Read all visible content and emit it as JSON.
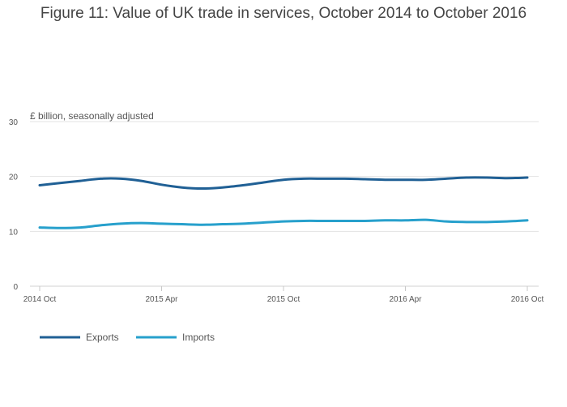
{
  "chart_data": {
    "type": "line",
    "title": "Figure 11: Value of UK trade in services, October 2014 to October 2016",
    "ylabel": "£ billion, seasonally adjusted",
    "xlabel": "",
    "ylim": [
      0,
      30
    ],
    "yticks": [
      0,
      10,
      20,
      30
    ],
    "x": [
      "2014 Oct",
      "2014 Nov",
      "2014 Dec",
      "2015 Jan",
      "2015 Feb",
      "2015 Mar",
      "2015 Apr",
      "2015 May",
      "2015 Jun",
      "2015 Jul",
      "2015 Aug",
      "2015 Sep",
      "2015 Oct",
      "2015 Nov",
      "2015 Dec",
      "2016 Jan",
      "2016 Feb",
      "2016 Mar",
      "2016 Apr",
      "2016 May",
      "2016 Jun",
      "2016 Jul",
      "2016 Aug",
      "2016 Sep",
      "2016 Oct"
    ],
    "xticks": [
      {
        "index": 0,
        "label": "2014 Oct"
      },
      {
        "index": 6,
        "label": "2015 Apr"
      },
      {
        "index": 12,
        "label": "2015 Oct"
      },
      {
        "index": 18,
        "label": "2016 Apr"
      },
      {
        "index": 24,
        "label": "2016 Oct"
      }
    ],
    "series": [
      {
        "name": "Exports",
        "color": "#206095",
        "values": [
          18.4,
          18.8,
          19.2,
          19.6,
          19.6,
          19.2,
          18.5,
          18.0,
          17.8,
          18.0,
          18.4,
          18.9,
          19.4,
          19.6,
          19.6,
          19.6,
          19.5,
          19.4,
          19.4,
          19.4,
          19.6,
          19.8,
          19.8,
          19.7,
          19.8
        ]
      },
      {
        "name": "Imports",
        "color": "#27a0cc",
        "values": [
          10.7,
          10.6,
          10.7,
          11.1,
          11.4,
          11.5,
          11.4,
          11.3,
          11.2,
          11.3,
          11.4,
          11.6,
          11.8,
          11.9,
          11.9,
          11.9,
          11.9,
          12.0,
          12.0,
          12.1,
          11.8,
          11.7,
          11.7,
          11.8,
          12.0
        ]
      }
    ],
    "legend_position": "bottom-left",
    "grid": true
  }
}
